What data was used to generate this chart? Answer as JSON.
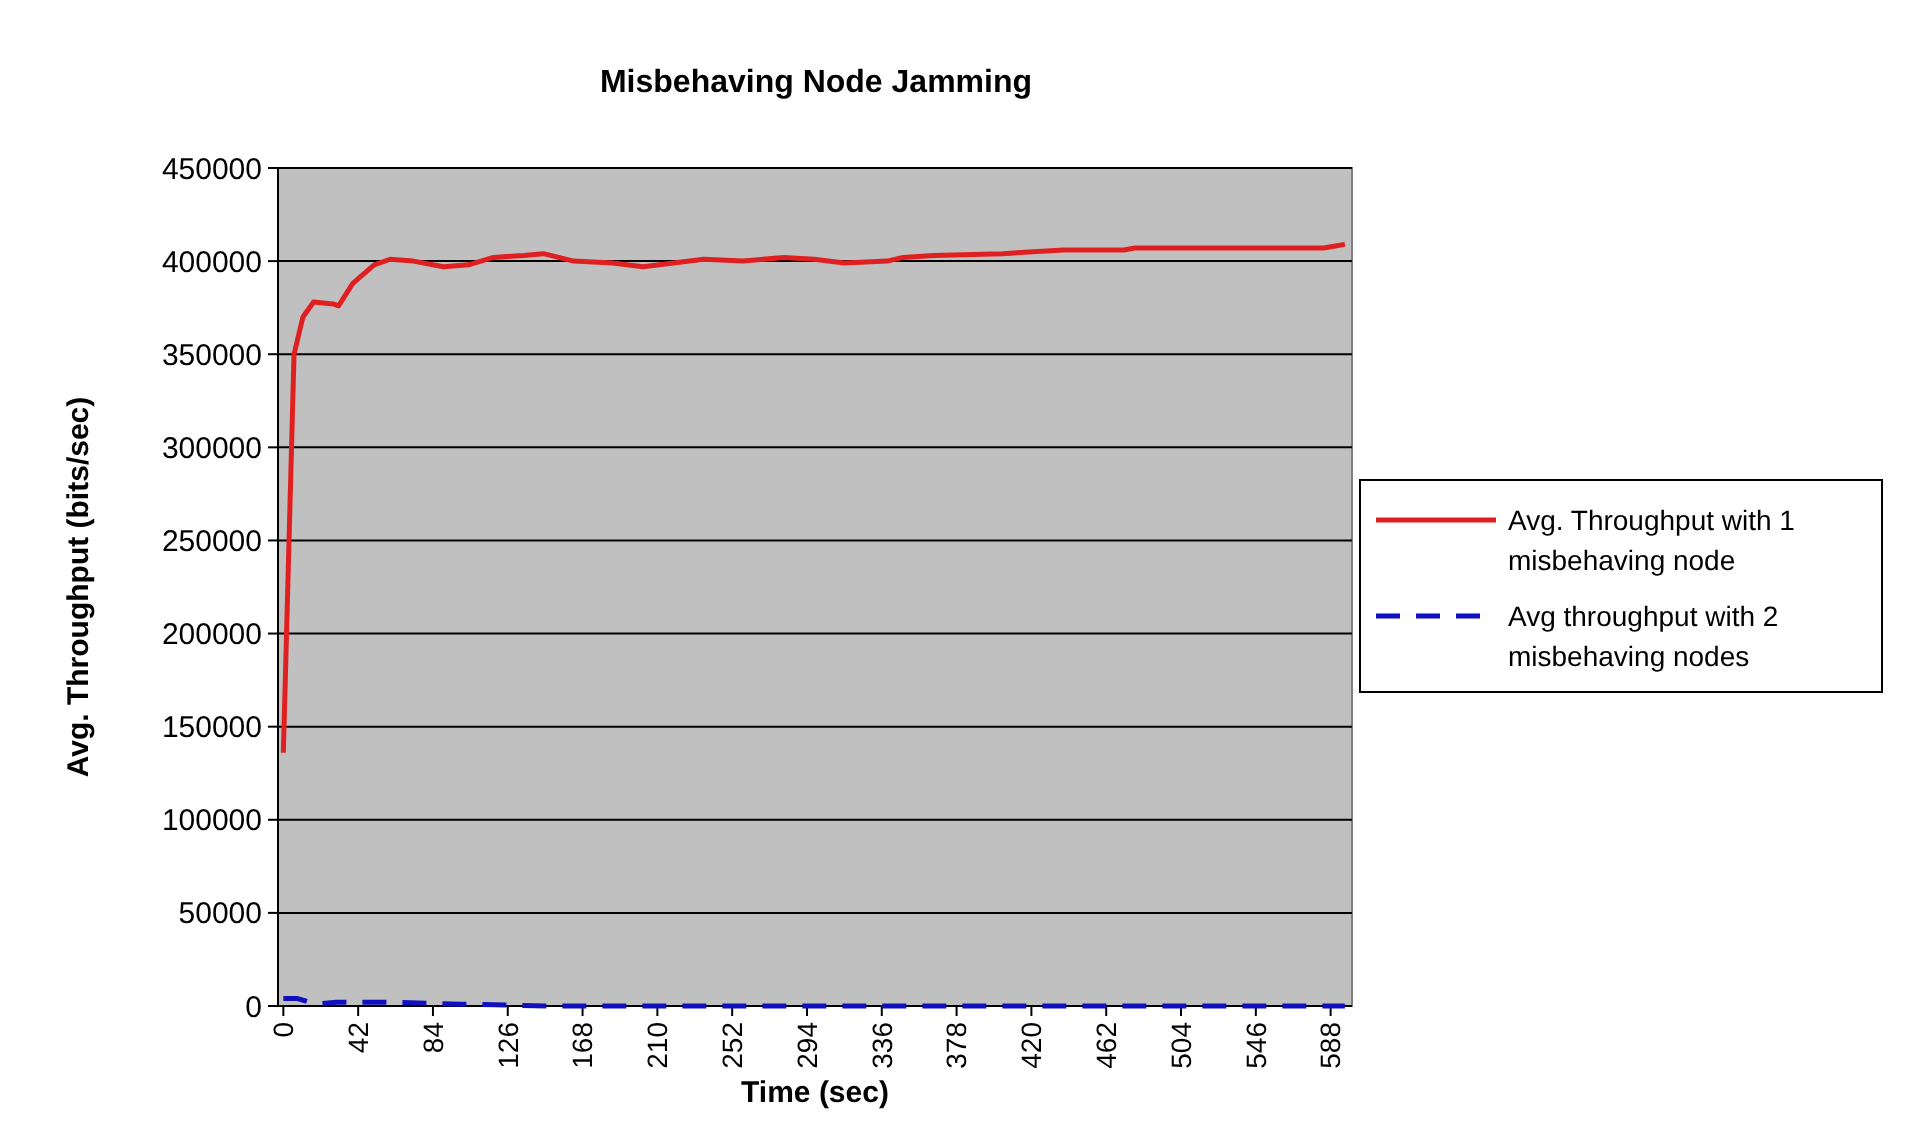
{
  "chart_data": {
    "type": "line",
    "title": "Misbehaving Node Jamming",
    "xlabel": "Time (sec)",
    "ylabel": "Avg. Throughput (bits/sec)",
    "xlim": [
      -3,
      600
    ],
    "xticks": [
      0,
      42,
      84,
      126,
      168,
      210,
      252,
      294,
      336,
      378,
      420,
      462,
      504,
      546,
      588
    ],
    "ylim": [
      0,
      450000
    ],
    "yticks": [
      0,
      50000,
      100000,
      150000,
      200000,
      250000,
      300000,
      350000,
      400000,
      450000
    ],
    "grid": "y",
    "legend": "right",
    "series": [
      {
        "name": "Avg. Throughput with 1 misbehaving node",
        "color": "#e02020",
        "line_style": "solid",
        "x": [
          0,
          6,
          11,
          17,
          28,
          31,
          39,
          51,
          60,
          73,
          90,
          104,
          118,
          135,
          146,
          163,
          185,
          202,
          219,
          236,
          258,
          281,
          298,
          315,
          339,
          348,
          365,
          404,
          438,
          472,
          478,
          584,
          596
        ],
        "values": [
          136000,
          350000,
          370000,
          378000,
          377000,
          376000,
          388000,
          398000,
          401000,
          400000,
          397000,
          398000,
          402000,
          403000,
          404000,
          400000,
          399000,
          397000,
          399000,
          401000,
          400000,
          402000,
          401000,
          399000,
          400000,
          402000,
          403000,
          404000,
          406000,
          406000,
          407000,
          407000,
          409000
        ]
      },
      {
        "name": "Avg throughput with 2 misbehaving nodes",
        "color": "#1010c0",
        "line_style": "dashed",
        "x": [
          0,
          8,
          18,
          30,
          60,
          100,
          150,
          300,
          596
        ],
        "values": [
          4000,
          4000,
          1000,
          2000,
          2000,
          1000,
          0,
          0,
          0
        ]
      }
    ]
  }
}
